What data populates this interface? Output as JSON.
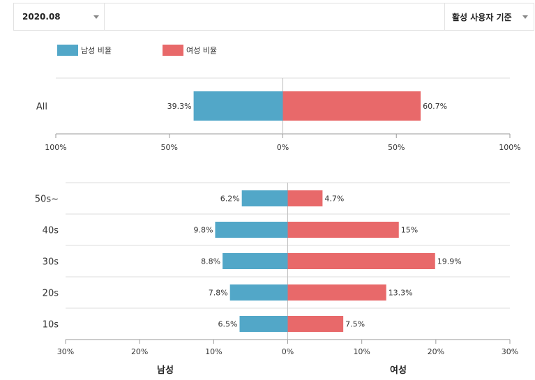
{
  "toolbar": {
    "month_value": "2020.08",
    "basis_value": "활성 사용자 기준"
  },
  "colors": {
    "male": "#52a7c8",
    "female": "#e8696a"
  },
  "legend": {
    "male_label": "남성 비율",
    "female_label": "여성 비율"
  },
  "chart_data": [
    {
      "type": "bar",
      "orientation": "horizontal-diverging",
      "categories": [
        "All"
      ],
      "series": [
        {
          "name": "남성 비율",
          "values": [
            39.3
          ],
          "labels": [
            "39.3%"
          ]
        },
        {
          "name": "여성 비율",
          "values": [
            60.7
          ],
          "labels": [
            "60.7%"
          ]
        }
      ],
      "xlim": [
        -100,
        100
      ],
      "xticks": [
        "100%",
        "50%",
        "0%",
        "50%",
        "100%"
      ]
    },
    {
      "type": "bar",
      "orientation": "horizontal-diverging",
      "categories": [
        "50s~",
        "40s",
        "30s",
        "20s",
        "10s"
      ],
      "series": [
        {
          "name": "남성 비율",
          "values": [
            6.2,
            9.8,
            8.8,
            7.8,
            6.5
          ],
          "labels": [
            "6.2%",
            "9.8%",
            "8.8%",
            "7.8%",
            "6.5%"
          ]
        },
        {
          "name": "여성 비율",
          "values": [
            4.7,
            15,
            19.9,
            13.3,
            7.5
          ],
          "labels": [
            "4.7%",
            "15%",
            "19.9%",
            "13.3%",
            "7.5%"
          ]
        }
      ],
      "xlim": [
        -30,
        30
      ],
      "xticks": [
        "30%",
        "20%",
        "10%",
        "0%",
        "10%",
        "20%",
        "30%"
      ],
      "xlabel_left": "남성",
      "xlabel_right": "여성"
    }
  ]
}
